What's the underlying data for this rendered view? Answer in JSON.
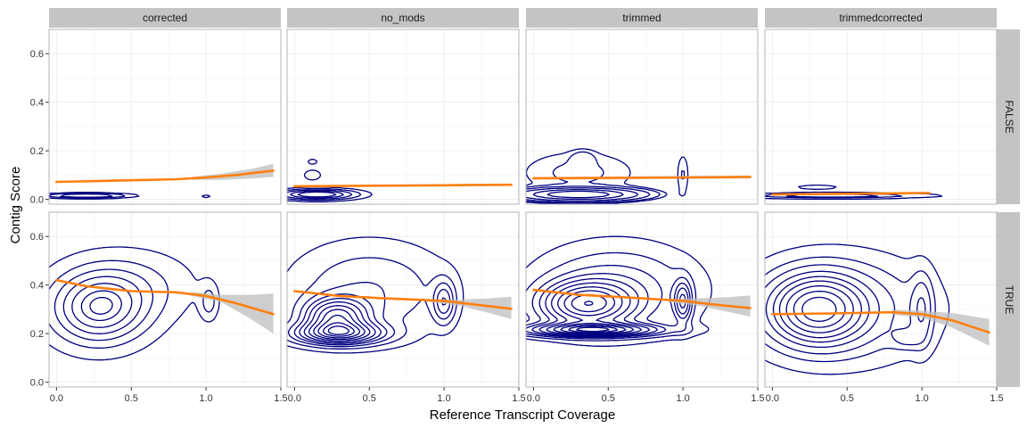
{
  "chart_data": {
    "type": "faceted-density-contour",
    "xlabel": "Reference Transcript Coverage",
    "ylabel": "Contig Score",
    "xlim": [
      -0.05,
      1.5
    ],
    "ylim": [
      -0.02,
      0.7
    ],
    "x_ticks": [
      0.0,
      0.5,
      1.0,
      1.5
    ],
    "x_tick_labels": [
      "0.0",
      "0.5",
      "1.0",
      "1.5"
    ],
    "y_ticks": [
      0.0,
      0.2,
      0.4,
      0.6
    ],
    "y_tick_labels": [
      "0.0",
      "0.2",
      "0.4",
      "0.6"
    ],
    "grid": true,
    "colors": {
      "contour": "#000080",
      "smooth": "#ff7f0e",
      "ribbon": "#bdbdbd",
      "strip": "#c4c4c4",
      "grid": "#ececec",
      "panel_border": "#b3b3b3"
    },
    "columns": [
      "corrected",
      "no_mods",
      "trimmed",
      "trimmedcorrected"
    ],
    "rows": [
      "FALSE",
      "TRUE"
    ],
    "panels": [
      {
        "col": "corrected",
        "row": "FALSE",
        "smooth": {
          "x": [
            0.0,
            0.3,
            0.6,
            0.8,
            1.0,
            1.2,
            1.45
          ],
          "y": [
            0.072,
            0.076,
            0.08,
            0.083,
            0.09,
            0.1,
            0.118
          ]
        },
        "ribbon": {
          "x": [
            0.9,
            1.1,
            1.3,
            1.45
          ],
          "lower": [
            0.08,
            0.08,
            0.086,
            0.092
          ],
          "upper": [
            0.092,
            0.106,
            0.125,
            0.146
          ]
        },
        "density": [
          {
            "cx": 0.2,
            "cy": 0.015,
            "sx": 0.17,
            "sy": 0.006,
            "w": 1.0
          },
          {
            "cx": 1.0,
            "cy": 0.012,
            "sx": 0.02,
            "sy": 0.004,
            "w": 0.25
          }
        ],
        "levels": [
          0.12,
          0.32,
          0.6
        ]
      },
      {
        "col": "no_mods",
        "row": "FALSE",
        "smooth": {
          "x": [
            0.0,
            0.5,
            1.0,
            1.45
          ],
          "y": [
            0.054,
            0.056,
            0.058,
            0.06
          ]
        },
        "ribbon": {
          "x": [
            0.0,
            1.45
          ],
          "lower": [
            0.05,
            0.056
          ],
          "upper": [
            0.058,
            0.064
          ]
        },
        "density": [
          {
            "cx": 0.15,
            "cy": 0.02,
            "sx": 0.15,
            "sy": 0.012,
            "w": 1.0
          },
          {
            "cx": 0.12,
            "cy": 0.1,
            "sx": 0.04,
            "sy": 0.015,
            "w": 0.12
          },
          {
            "cx": 0.12,
            "cy": 0.155,
            "sx": 0.03,
            "sy": 0.01,
            "w": 0.08
          }
        ],
        "levels": [
          0.05,
          0.15,
          0.3,
          0.5,
          0.7
        ]
      },
      {
        "col": "trimmed",
        "row": "FALSE",
        "smooth": {
          "x": [
            0.0,
            0.5,
            1.0,
            1.45
          ],
          "y": [
            0.087,
            0.088,
            0.09,
            0.092
          ]
        },
        "ribbon": {
          "x": [
            0.0,
            1.45
          ],
          "lower": [
            0.082,
            0.086
          ],
          "upper": [
            0.092,
            0.098
          ]
        },
        "density": [
          {
            "cx": 0.3,
            "cy": 0.02,
            "sx": 0.22,
            "sy": 0.014,
            "w": 1.0
          },
          {
            "cx": 0.3,
            "cy": 0.11,
            "sx": 0.3,
            "sy": 0.07,
            "w": 0.06
          },
          {
            "cx": 0.33,
            "cy": 0.17,
            "sx": 0.05,
            "sy": 0.02,
            "w": 0.05
          },
          {
            "cx": 1.0,
            "cy": 0.1,
            "sx": 0.03,
            "sy": 0.07,
            "w": 0.05
          }
        ],
        "levels": [
          0.03,
          0.05,
          0.1,
          0.2,
          0.4,
          0.65
        ]
      },
      {
        "col": "trimmedcorrected",
        "row": "FALSE",
        "smooth": {
          "x": [
            0.0,
            0.5,
            1.0,
            1.05
          ],
          "y": [
            0.02,
            0.023,
            0.026,
            0.026
          ]
        },
        "ribbon": {
          "x": [
            0.0,
            1.05
          ],
          "lower": [
            0.017,
            0.022
          ],
          "upper": [
            0.024,
            0.03
          ]
        },
        "density": [
          {
            "cx": 0.4,
            "cy": 0.015,
            "sx": 0.3,
            "sy": 0.005,
            "w": 1.0
          },
          {
            "cx": 0.3,
            "cy": 0.05,
            "sx": 0.12,
            "sy": 0.008,
            "w": 0.08
          }
        ],
        "levels": [
          0.05,
          0.3,
          0.6
        ]
      },
      {
        "col": "corrected",
        "row": "TRUE",
        "smooth": {
          "x": [
            0.0,
            0.2,
            0.5,
            0.8,
            1.0,
            1.2,
            1.45
          ],
          "y": [
            0.42,
            0.395,
            0.375,
            0.37,
            0.355,
            0.325,
            0.28
          ]
        },
        "ribbon": {
          "x": [
            0.9,
            1.1,
            1.3,
            1.45
          ],
          "lower": [
            0.355,
            0.33,
            0.26,
            0.2
          ],
          "upper": [
            0.372,
            0.36,
            0.36,
            0.365
          ]
        },
        "density": [
          {
            "cx": 0.28,
            "cy": 0.3,
            "sx": 0.22,
            "sy": 0.1,
            "w": 1.0
          },
          {
            "cx": 0.5,
            "cy": 0.4,
            "sx": 0.3,
            "sy": 0.1,
            "w": 0.3
          },
          {
            "cx": 1.02,
            "cy": 0.33,
            "sx": 0.04,
            "sy": 0.05,
            "w": 0.35
          }
        ],
        "levels": [
          0.1,
          0.25,
          0.4,
          0.55,
          0.7,
          0.85,
          0.95
        ]
      },
      {
        "col": "no_mods",
        "row": "TRUE",
        "smooth": {
          "x": [
            0.0,
            0.3,
            0.6,
            1.0,
            1.2,
            1.45
          ],
          "y": [
            0.375,
            0.355,
            0.345,
            0.335,
            0.32,
            0.302
          ]
        },
        "ribbon": {
          "x": [
            0.9,
            1.1,
            1.3,
            1.45
          ],
          "lower": [
            0.33,
            0.315,
            0.285,
            0.26
          ],
          "upper": [
            0.342,
            0.34,
            0.345,
            0.352
          ]
        },
        "density": [
          {
            "cx": 0.3,
            "cy": 0.2,
            "sx": 0.2,
            "sy": 0.03,
            "w": 1.0
          },
          {
            "cx": 0.28,
            "cy": 0.27,
            "sx": 0.14,
            "sy": 0.05,
            "w": 0.9
          },
          {
            "cx": 0.5,
            "cy": 0.38,
            "sx": 0.35,
            "sy": 0.13,
            "w": 0.3
          },
          {
            "cx": 1.0,
            "cy": 0.33,
            "sx": 0.05,
            "sy": 0.06,
            "w": 0.45
          }
        ],
        "levels": [
          0.05,
          0.12,
          0.2,
          0.28,
          0.36,
          0.45,
          0.55,
          0.65,
          0.75,
          0.85,
          0.93
        ]
      },
      {
        "col": "trimmed",
        "row": "TRUE",
        "smooth": {
          "x": [
            0.0,
            0.3,
            0.6,
            1.0,
            1.2,
            1.45
          ],
          "y": [
            0.38,
            0.36,
            0.35,
            0.335,
            0.32,
            0.305
          ]
        },
        "ribbon": {
          "x": [
            0.9,
            1.1,
            1.3,
            1.45
          ],
          "lower": [
            0.33,
            0.315,
            0.29,
            0.27
          ],
          "upper": [
            0.343,
            0.345,
            0.35,
            0.357
          ]
        },
        "density": [
          {
            "cx": 0.4,
            "cy": 0.215,
            "sx": 0.3,
            "sy": 0.018,
            "w": 1.0
          },
          {
            "cx": 0.35,
            "cy": 0.32,
            "sx": 0.2,
            "sy": 0.06,
            "w": 0.85
          },
          {
            "cx": 0.55,
            "cy": 0.38,
            "sx": 0.35,
            "sy": 0.12,
            "w": 0.35
          },
          {
            "cx": 1.0,
            "cy": 0.33,
            "sx": 0.04,
            "sy": 0.06,
            "w": 0.5
          }
        ],
        "levels": [
          0.05,
          0.12,
          0.2,
          0.28,
          0.36,
          0.45,
          0.55,
          0.65,
          0.75,
          0.85,
          0.93
        ]
      },
      {
        "col": "trimmedcorrected",
        "row": "TRUE",
        "smooth": {
          "x": [
            0.0,
            0.4,
            0.8,
            1.0,
            1.2,
            1.45
          ],
          "y": [
            0.28,
            0.283,
            0.288,
            0.28,
            0.255,
            0.205
          ]
        },
        "ribbon": {
          "x": [
            0.8,
            1.0,
            1.2,
            1.45
          ],
          "lower": [
            0.278,
            0.266,
            0.225,
            0.15
          ],
          "upper": [
            0.298,
            0.294,
            0.285,
            0.26
          ]
        },
        "density": [
          {
            "cx": 0.3,
            "cy": 0.3,
            "sx": 0.2,
            "sy": 0.09,
            "w": 1.0
          },
          {
            "cx": 0.45,
            "cy": 0.3,
            "sx": 0.4,
            "sy": 0.14,
            "w": 0.35
          },
          {
            "cx": 0.9,
            "cy": 0.18,
            "sx": 0.07,
            "sy": 0.03,
            "w": 0.2
          },
          {
            "cx": 1.0,
            "cy": 0.3,
            "sx": 0.05,
            "sy": 0.1,
            "w": 0.3
          }
        ],
        "levels": [
          0.05,
          0.12,
          0.2,
          0.3,
          0.4,
          0.5,
          0.62,
          0.75,
          0.88
        ]
      }
    ]
  }
}
